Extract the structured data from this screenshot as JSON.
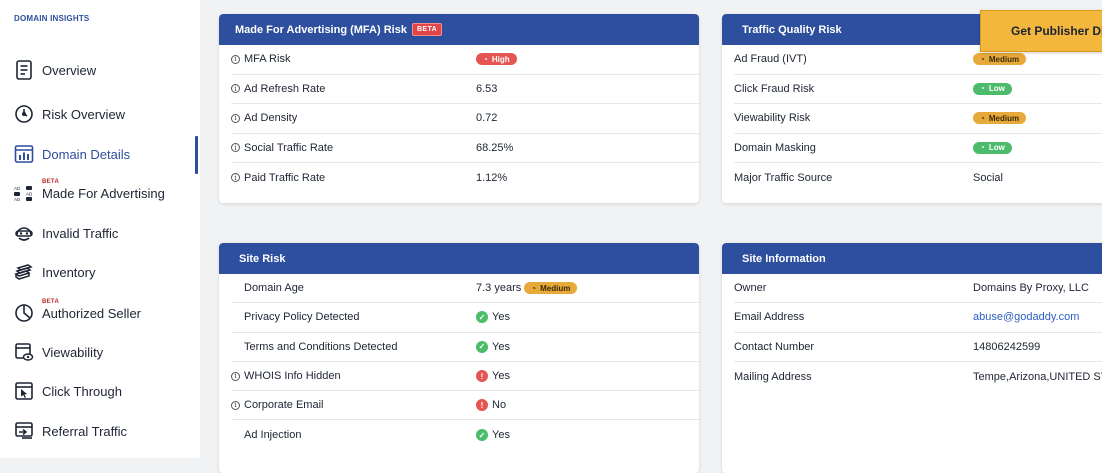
{
  "sidebar": {
    "title": "DOMAIN INSIGHTS",
    "items": [
      {
        "label": "Overview",
        "icon": "document-icon"
      },
      {
        "label": "Risk Overview",
        "icon": "shield-clock-icon"
      },
      {
        "label": "Domain Details",
        "icon": "bar-chart-window-icon"
      },
      {
        "label": "Made For Advertising",
        "icon": "ad-grid-icon",
        "badge": "BETA"
      },
      {
        "label": "Invalid Traffic",
        "icon": "bot-mask-icon"
      },
      {
        "label": "Inventory",
        "icon": "stack-icon"
      },
      {
        "label": "Authorized Seller",
        "icon": "pie-chart-icon",
        "badge": "BETA"
      },
      {
        "label": "Viewability",
        "icon": "window-eye-icon"
      },
      {
        "label": "Click Through",
        "icon": "cursor-window-icon"
      },
      {
        "label": "Referral Traffic",
        "icon": "referral-icon"
      }
    ],
    "active_index": 2,
    "accent": "#2d4f9e"
  },
  "cta": {
    "label": "Get Publisher Di"
  },
  "mfa": {
    "title": "Made For Advertising (MFA) Risk",
    "badge": "BETA",
    "rows": [
      {
        "key": "MFA Risk",
        "value": "High",
        "type": "pill-high"
      },
      {
        "key": "Ad Refresh Rate",
        "value": "6.53"
      },
      {
        "key": "Ad Density",
        "value": "0.72"
      },
      {
        "key": "Social Traffic Rate",
        "value": "68.25%"
      },
      {
        "key": "Paid Traffic Rate",
        "value": "1.12%"
      }
    ]
  },
  "traffic": {
    "title": "Traffic Quality Risk",
    "rows": [
      {
        "key": "Ad Fraud (IVT)",
        "value": "Medium",
        "type": "pill-medium"
      },
      {
        "key": "Click Fraud Risk",
        "value": "Low",
        "type": "pill-low"
      },
      {
        "key": "Viewability Risk",
        "value": "Medium",
        "type": "pill-medium"
      },
      {
        "key": "Domain Masking",
        "value": "Low",
        "type": "pill-low"
      },
      {
        "key": "Major Traffic Source",
        "value": "Social"
      }
    ]
  },
  "site_risk": {
    "title": "Site Risk",
    "rows": [
      {
        "key": "Domain Age",
        "value": "7.3 years",
        "pill": "Medium"
      },
      {
        "key": "Privacy Policy Detected",
        "value": "Yes",
        "status": "ok"
      },
      {
        "key": "Terms and Conditions Detected",
        "value": "Yes",
        "status": "ok"
      },
      {
        "key": "WHOIS Info Hidden",
        "value": "Yes",
        "status": "bad",
        "info": true
      },
      {
        "key": "Corporate Email",
        "value": "No",
        "status": "bad",
        "info": true
      },
      {
        "key": "Ad Injection",
        "value": "Yes",
        "status": "ok"
      }
    ]
  },
  "site_info": {
    "title": "Site Information",
    "rows": [
      {
        "key": "Owner",
        "value": "Domains By Proxy, LLC"
      },
      {
        "key": "Email Address",
        "value": "abuse@godaddy.com",
        "link": true
      },
      {
        "key": "Contact Number",
        "value": "14806242599"
      },
      {
        "key": "Mailing Address",
        "value": "Tempe,Arizona,UNITED ST"
      }
    ]
  },
  "colors": {
    "header": "#2d4f9e",
    "high": "#e45553",
    "medium": "#e6a93a",
    "low": "#4cbb6c",
    "cta": "#f4b73d"
  }
}
